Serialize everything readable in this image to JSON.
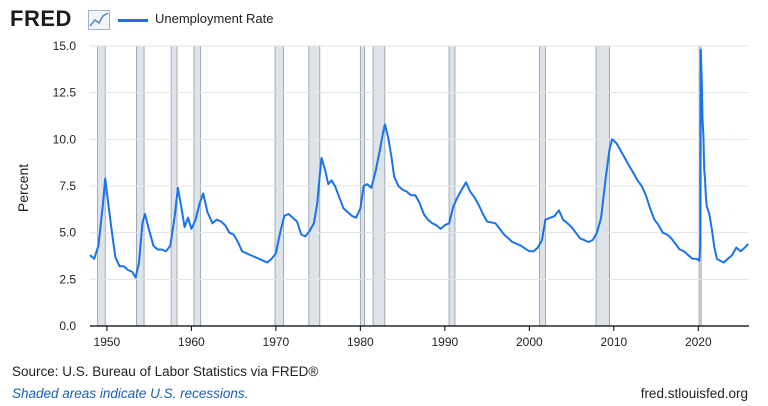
{
  "header": {
    "logo_text": "FRED",
    "logo_icon": "trend-line-icon",
    "legend_label": "Unemployment Rate",
    "legend_color": "#1a73e8"
  },
  "footer": {
    "source_prefix": "Source: U.S. Bureau of Labor Statistics via FRED®",
    "shading_note": "Shaded areas indicate U.S. recessions.",
    "site_url": "fred.stlouisfed.org"
  },
  "chart_data": {
    "type": "line",
    "title": "",
    "xlabel": "",
    "ylabel": "Percent",
    "xlim": [
      1948,
      2026
    ],
    "ylim": [
      0,
      15
    ],
    "x_ticks": [
      1950,
      1960,
      1970,
      1980,
      1990,
      2000,
      2010,
      2020
    ],
    "y_ticks": [
      "0.0",
      "2.5",
      "5.0",
      "7.5",
      "10.0",
      "12.5",
      "15.0"
    ],
    "grid": "horizontal",
    "line_color": "#1a73e8",
    "recession_color": "#dde3e8",
    "recessions": [
      [
        1948.9,
        1949.8
      ],
      [
        1953.5,
        1954.4
      ],
      [
        1957.6,
        1958.3
      ],
      [
        1960.3,
        1961.1
      ],
      [
        1969.9,
        1970.9
      ],
      [
        1973.9,
        1975.2
      ],
      [
        1980.0,
        1980.5
      ],
      [
        1981.5,
        1982.9
      ],
      [
        1990.5,
        1991.2
      ],
      [
        2001.2,
        2001.9
      ],
      [
        2007.9,
        2009.5
      ],
      [
        2020.1,
        2020.3
      ]
    ],
    "series": [
      {
        "name": "Unemployment Rate",
        "points": [
          [
            1948.0,
            3.8
          ],
          [
            1948.5,
            3.6
          ],
          [
            1949.0,
            4.3
          ],
          [
            1949.5,
            6.4
          ],
          [
            1949.8,
            7.9
          ],
          [
            1950.2,
            6.4
          ],
          [
            1950.6,
            5.0
          ],
          [
            1951.0,
            3.7
          ],
          [
            1951.5,
            3.2
          ],
          [
            1952.0,
            3.2
          ],
          [
            1952.5,
            3.0
          ],
          [
            1953.0,
            2.9
          ],
          [
            1953.4,
            2.6
          ],
          [
            1953.8,
            3.4
          ],
          [
            1954.2,
            5.5
          ],
          [
            1954.5,
            6.0
          ],
          [
            1954.9,
            5.3
          ],
          [
            1955.5,
            4.3
          ],
          [
            1956.0,
            4.1
          ],
          [
            1956.5,
            4.1
          ],
          [
            1957.0,
            4.0
          ],
          [
            1957.5,
            4.3
          ],
          [
            1958.0,
            5.8
          ],
          [
            1958.4,
            7.4
          ],
          [
            1958.8,
            6.4
          ],
          [
            1959.2,
            5.3
          ],
          [
            1959.6,
            5.8
          ],
          [
            1960.0,
            5.2
          ],
          [
            1960.5,
            5.7
          ],
          [
            1961.0,
            6.6
          ],
          [
            1961.4,
            7.1
          ],
          [
            1961.9,
            6.1
          ],
          [
            1962.5,
            5.5
          ],
          [
            1963.0,
            5.7
          ],
          [
            1963.5,
            5.6
          ],
          [
            1964.0,
            5.4
          ],
          [
            1964.5,
            5.0
          ],
          [
            1965.0,
            4.9
          ],
          [
            1965.5,
            4.5
          ],
          [
            1966.0,
            4.0
          ],
          [
            1967.0,
            3.8
          ],
          [
            1968.0,
            3.6
          ],
          [
            1968.5,
            3.5
          ],
          [
            1969.0,
            3.4
          ],
          [
            1969.5,
            3.6
          ],
          [
            1970.0,
            3.9
          ],
          [
            1970.5,
            5.0
          ],
          [
            1971.0,
            5.9
          ],
          [
            1971.5,
            6.0
          ],
          [
            1972.0,
            5.8
          ],
          [
            1972.5,
            5.6
          ],
          [
            1973.0,
            4.9
          ],
          [
            1973.5,
            4.8
          ],
          [
            1974.0,
            5.1
          ],
          [
            1974.5,
            5.5
          ],
          [
            1974.9,
            6.6
          ],
          [
            1975.2,
            8.1
          ],
          [
            1975.4,
            9.0
          ],
          [
            1975.8,
            8.4
          ],
          [
            1976.2,
            7.6
          ],
          [
            1976.6,
            7.8
          ],
          [
            1977.0,
            7.5
          ],
          [
            1977.5,
            6.9
          ],
          [
            1978.0,
            6.3
          ],
          [
            1978.5,
            6.1
          ],
          [
            1979.0,
            5.9
          ],
          [
            1979.5,
            5.8
          ],
          [
            1980.0,
            6.3
          ],
          [
            1980.4,
            7.5
          ],
          [
            1980.8,
            7.6
          ],
          [
            1981.3,
            7.4
          ],
          [
            1981.8,
            8.3
          ],
          [
            1982.3,
            9.4
          ],
          [
            1982.7,
            10.4
          ],
          [
            1982.9,
            10.8
          ],
          [
            1983.3,
            10.1
          ],
          [
            1983.7,
            9.0
          ],
          [
            1984.0,
            8.0
          ],
          [
            1984.5,
            7.5
          ],
          [
            1985.0,
            7.3
          ],
          [
            1985.5,
            7.2
          ],
          [
            1986.0,
            7.0
          ],
          [
            1986.5,
            7.0
          ],
          [
            1987.0,
            6.6
          ],
          [
            1987.5,
            6.0
          ],
          [
            1988.0,
            5.7
          ],
          [
            1988.5,
            5.5
          ],
          [
            1989.0,
            5.4
          ],
          [
            1989.5,
            5.2
          ],
          [
            1990.0,
            5.4
          ],
          [
            1990.5,
            5.5
          ],
          [
            1991.0,
            6.4
          ],
          [
            1991.5,
            6.9
          ],
          [
            1992.0,
            7.3
          ],
          [
            1992.5,
            7.7
          ],
          [
            1993.0,
            7.2
          ],
          [
            1993.5,
            6.9
          ],
          [
            1994.0,
            6.5
          ],
          [
            1994.5,
            6.0
          ],
          [
            1995.0,
            5.6
          ],
          [
            1996.0,
            5.5
          ],
          [
            1997.0,
            4.9
          ],
          [
            1998.0,
            4.5
          ],
          [
            1999.0,
            4.3
          ],
          [
            2000.0,
            4.0
          ],
          [
            2000.5,
            4.0
          ],
          [
            2001.0,
            4.2
          ],
          [
            2001.5,
            4.6
          ],
          [
            2001.9,
            5.7
          ],
          [
            2002.5,
            5.8
          ],
          [
            2003.0,
            5.9
          ],
          [
            2003.5,
            6.2
          ],
          [
            2004.0,
            5.7
          ],
          [
            2004.5,
            5.5
          ],
          [
            2005.0,
            5.3
          ],
          [
            2005.5,
            5.0
          ],
          [
            2006.0,
            4.7
          ],
          [
            2006.5,
            4.6
          ],
          [
            2007.0,
            4.5
          ],
          [
            2007.5,
            4.6
          ],
          [
            2008.0,
            5.0
          ],
          [
            2008.5,
            5.8
          ],
          [
            2009.0,
            7.8
          ],
          [
            2009.5,
            9.5
          ],
          [
            2009.8,
            10.0
          ],
          [
            2010.3,
            9.8
          ],
          [
            2010.8,
            9.4
          ],
          [
            2011.3,
            9.0
          ],
          [
            2011.8,
            8.6
          ],
          [
            2012.3,
            8.2
          ],
          [
            2012.8,
            7.8
          ],
          [
            2013.3,
            7.5
          ],
          [
            2013.8,
            7.0
          ],
          [
            2014.3,
            6.3
          ],
          [
            2014.8,
            5.7
          ],
          [
            2015.3,
            5.4
          ],
          [
            2015.8,
            5.0
          ],
          [
            2016.3,
            4.9
          ],
          [
            2016.8,
            4.7
          ],
          [
            2017.3,
            4.4
          ],
          [
            2017.8,
            4.1
          ],
          [
            2018.3,
            4.0
          ],
          [
            2018.8,
            3.8
          ],
          [
            2019.3,
            3.6
          ],
          [
            2019.8,
            3.6
          ],
          [
            2020.1,
            3.5
          ],
          [
            2020.25,
            4.4
          ],
          [
            2020.3,
            14.8
          ],
          [
            2020.4,
            13.2
          ],
          [
            2020.5,
            11.1
          ],
          [
            2020.6,
            10.2
          ],
          [
            2020.7,
            8.4
          ],
          [
            2020.8,
            7.8
          ],
          [
            2020.9,
            6.9
          ],
          [
            2021.0,
            6.4
          ],
          [
            2021.3,
            6.0
          ],
          [
            2021.6,
            5.2
          ],
          [
            2021.9,
            4.2
          ],
          [
            2022.2,
            3.6
          ],
          [
            2022.6,
            3.5
          ],
          [
            2023.0,
            3.4
          ],
          [
            2023.5,
            3.6
          ],
          [
            2024.0,
            3.8
          ],
          [
            2024.5,
            4.2
          ],
          [
            2025.0,
            4.0
          ],
          [
            2025.5,
            4.2
          ],
          [
            2025.9,
            4.4
          ]
        ]
      }
    ]
  }
}
